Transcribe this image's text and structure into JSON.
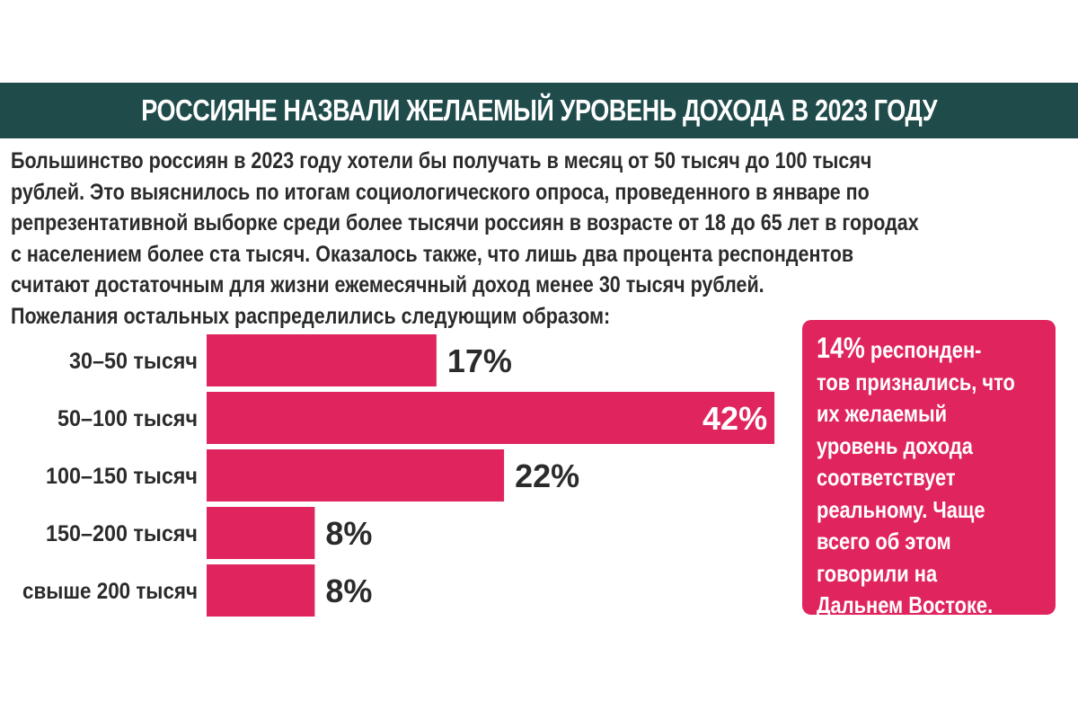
{
  "header": {
    "title": "РОССИЯНЕ НАЗВАЛИ ЖЕЛАЕМЫЙ УРОВЕНЬ ДОХОДА В 2023 ГОДУ"
  },
  "intro": {
    "lines": [
      "Большинство россиян в 2023 году хотели бы получать в месяц от 50 тысяч до 100 тысяч",
      "рублей. Это выяснилось по итогам социологического опроса, проведенного в январе по",
      "репрезентативной выборке среди более тысячи россиян в возрасте от 18 до 65 лет в городах",
      "с населением более ста тысяч. Оказалось также, что лишь два процента респондентов",
      "считают достаточным для жизни ежемесячный доход менее 30 тысяч рублей.",
      "Пожелания остальных распределились следующим образом:"
    ]
  },
  "chart_data": {
    "type": "bar",
    "orientation": "horizontal",
    "categories": [
      "30–50 тысяч",
      "50–100 тысяч",
      "100–150 тысяч",
      "150–200 тысяч",
      "свыше 200 тысяч"
    ],
    "values": [
      17,
      42,
      22,
      8,
      8
    ],
    "labels": [
      "17%",
      "42%",
      "22%",
      "8%",
      "8%"
    ],
    "unit": "%",
    "bar_color": "#e0245e",
    "grid": false
  },
  "callout": {
    "highlight": "14%",
    "first_line_rest": " респонден-",
    "lines": [
      "тов признались, что",
      "их желаемый",
      "уровень дохода",
      "соответствует",
      "реальному. Чаще",
      "всего об этом",
      "говорили на",
      "Дальнем Востоке."
    ]
  },
  "colors": {
    "header_bg": "#1f4b4a",
    "accent": "#e0245e",
    "text": "#2b2b2b"
  }
}
